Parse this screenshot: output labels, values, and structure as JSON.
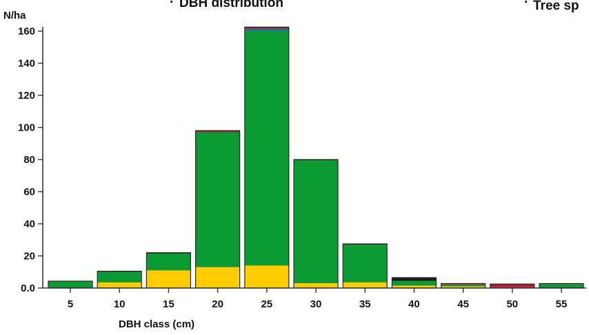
{
  "chart_data": {
    "type": "bar",
    "stacked": true,
    "title": "DBH distribution",
    "title_prefix": "·",
    "secondary_title": "Tree sp",
    "ylabel": "N/ha",
    "xlabel": "DBH class (cm)",
    "ylim": [
      0,
      165
    ],
    "y_ticks": [
      {
        "value": 0,
        "label": "0.0"
      },
      {
        "value": 20,
        "label": "20"
      },
      {
        "value": 40,
        "label": "40"
      },
      {
        "value": 60,
        "label": "60"
      },
      {
        "value": 80,
        "label": "80"
      },
      {
        "value": 100,
        "label": "100"
      },
      {
        "value": 120,
        "label": "120"
      },
      {
        "value": 140,
        "label": "140"
      },
      {
        "value": 160,
        "label": "160"
      }
    ],
    "categories": [
      "5",
      "10",
      "15",
      "20",
      "25",
      "30",
      "35",
      "40",
      "45",
      "50",
      "55"
    ],
    "series": [
      {
        "color": "#ffcc00",
        "values": [
          0,
          3.5,
          11,
          13,
          14,
          3,
          3.5,
          1.5,
          1,
          0,
          0
        ]
      },
      {
        "color": "#0b9a33",
        "values": [
          4,
          6.5,
          10.5,
          84,
          146,
          76.5,
          23.5,
          3,
          1,
          0.5,
          2.5
        ]
      },
      {
        "color": "#2d6f88",
        "values": [
          0,
          0,
          0,
          0,
          1.5,
          0,
          0,
          0,
          0,
          0,
          0
        ]
      },
      {
        "color": "#c8102e",
        "values": [
          0,
          0,
          0,
          0.5,
          0.5,
          0,
          0,
          0,
          0.5,
          1.5,
          0
        ]
      },
      {
        "color": "#1b1b1b",
        "values": [
          0.3,
          0.5,
          0.5,
          0.5,
          0.5,
          0.5,
          0.5,
          2,
          0.3,
          0.5,
          0.3
        ]
      }
    ],
    "grid": false,
    "legend": "none",
    "axis_color": "#333333",
    "bar_stroke_color": "#2a2a2a"
  }
}
